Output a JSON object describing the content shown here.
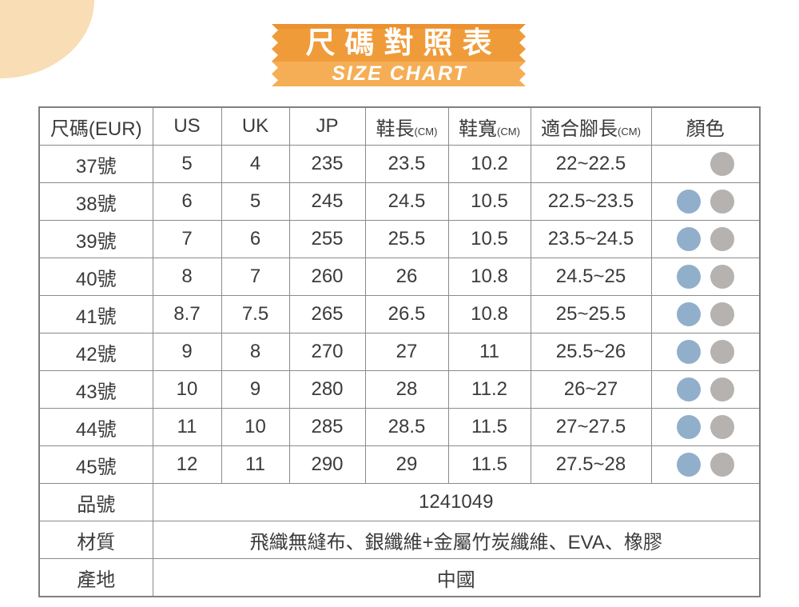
{
  "page": {
    "background_color": "#ffffff"
  },
  "decoration": {
    "corner_blob_color": "#f8ddb5"
  },
  "banner": {
    "title": "尺碼對照表",
    "subtitle": "SIZE CHART",
    "band_top_color": "#f09b3a",
    "band_top_edge_color": "#ec9130",
    "band_bottom_color": "#f5ae55",
    "text_color": "#ffffff"
  },
  "size_table": {
    "columns": [
      {
        "label": "尺碼(EUR)"
      },
      {
        "label": "US"
      },
      {
        "label": "UK"
      },
      {
        "label": "JP"
      },
      {
        "label": "鞋長",
        "unit": "(CM)"
      },
      {
        "label": "鞋寬",
        "unit": "(CM)"
      },
      {
        "label": "適合腳長",
        "unit": "(CM)"
      },
      {
        "label": "顏色"
      }
    ],
    "column_keys": [
      "eur",
      "us",
      "uk",
      "jp",
      "length",
      "width",
      "foot"
    ],
    "dot_colors": {
      "blue": "#91afcb",
      "gray": "#b5b2b0"
    },
    "rows": [
      {
        "eur": "37號",
        "us": "5",
        "uk": "4",
        "jp": "235",
        "length": "23.5",
        "width": "10.2",
        "foot": "22~22.5",
        "colors": [
          null,
          "gray"
        ]
      },
      {
        "eur": "38號",
        "us": "6",
        "uk": "5",
        "jp": "245",
        "length": "24.5",
        "width": "10.5",
        "foot": "22.5~23.5",
        "colors": [
          "blue",
          "gray"
        ]
      },
      {
        "eur": "39號",
        "us": "7",
        "uk": "6",
        "jp": "255",
        "length": "25.5",
        "width": "10.5",
        "foot": "23.5~24.5",
        "colors": [
          "blue",
          "gray"
        ]
      },
      {
        "eur": "40號",
        "us": "8",
        "uk": "7",
        "jp": "260",
        "length": "26",
        "width": "10.8",
        "foot": "24.5~25",
        "colors": [
          "blue",
          "gray"
        ]
      },
      {
        "eur": "41號",
        "us": "8.7",
        "uk": "7.5",
        "jp": "265",
        "length": "26.5",
        "width": "10.8",
        "foot": "25~25.5",
        "colors": [
          "blue",
          "gray"
        ]
      },
      {
        "eur": "42號",
        "us": "9",
        "uk": "8",
        "jp": "270",
        "length": "27",
        "width": "11",
        "foot": "25.5~26",
        "colors": [
          "blue",
          "gray"
        ]
      },
      {
        "eur": "43號",
        "us": "10",
        "uk": "9",
        "jp": "280",
        "length": "28",
        "width": "11.2",
        "foot": "26~27",
        "colors": [
          "blue",
          "gray"
        ]
      },
      {
        "eur": "44號",
        "us": "11",
        "uk": "10",
        "jp": "285",
        "length": "28.5",
        "width": "11.5",
        "foot": "27~27.5",
        "colors": [
          "blue",
          "gray"
        ]
      },
      {
        "eur": "45號",
        "us": "12",
        "uk": "11",
        "jp": "290",
        "length": "29",
        "width": "11.5",
        "foot": "27.5~28",
        "colors": [
          "blue",
          "gray"
        ]
      }
    ],
    "info_rows": [
      {
        "label": "品號",
        "value": "1241049"
      },
      {
        "label": "材質",
        "value": "飛織無縫布、銀纖維+金屬竹炭纖維、EVA、橡膠"
      },
      {
        "label": "產地",
        "value": "中國"
      }
    ]
  }
}
